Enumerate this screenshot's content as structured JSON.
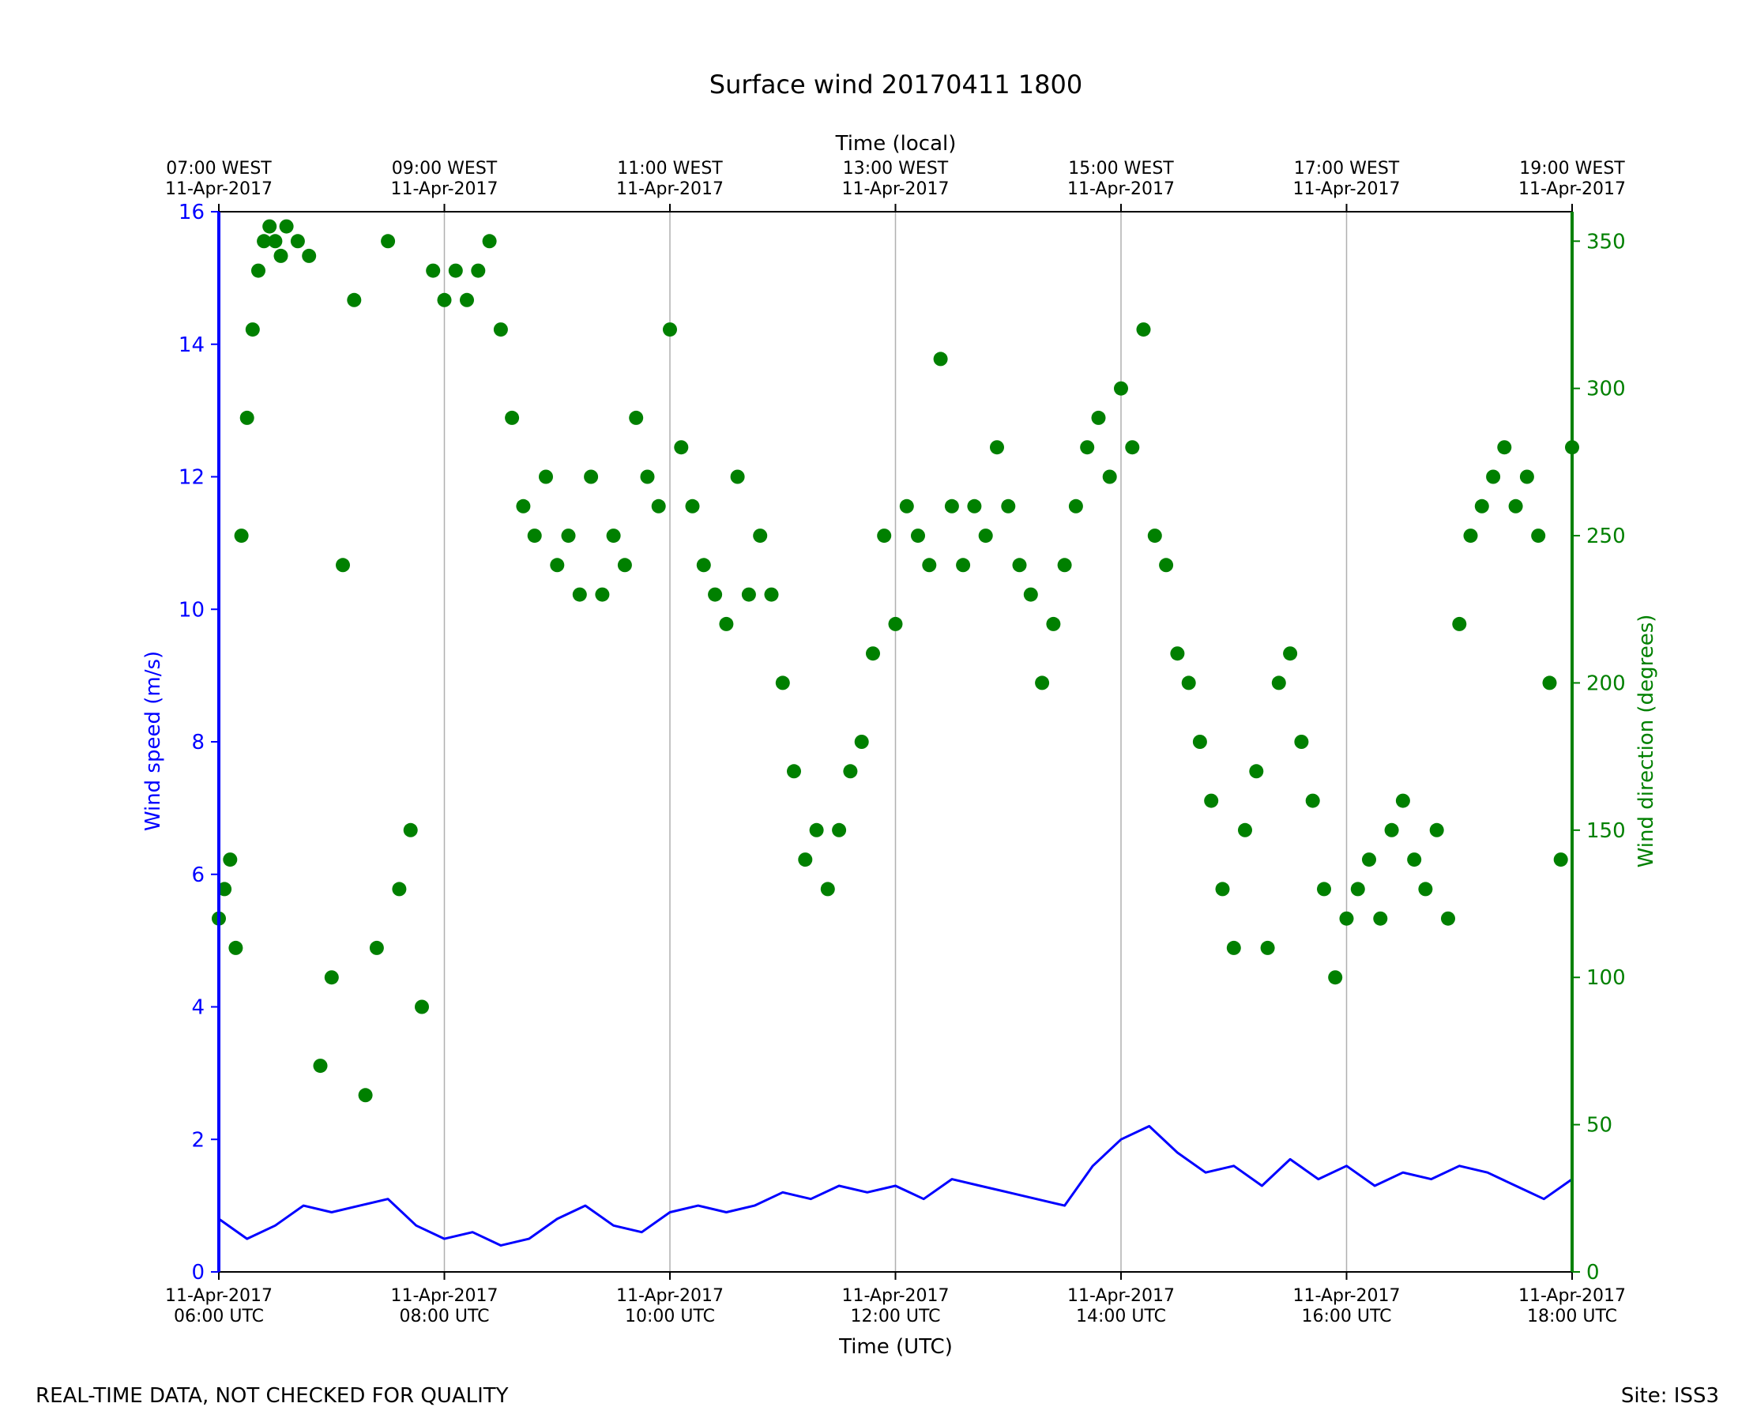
{
  "chart_data": {
    "type": "line+scatter",
    "title": "Surface wind 20170411 1800",
    "xlabel": "Time (UTC)",
    "x2label": "Time (local)",
    "ylabel": "Wind speed (m/s)",
    "y2label": "Wind direction (degrees)",
    "xlim_hours_utc": [
      6,
      18
    ],
    "ylim": [
      0,
      16
    ],
    "y2lim": [
      0,
      360
    ],
    "yticks": [
      0,
      2,
      4,
      6,
      8,
      10,
      12,
      14,
      16
    ],
    "y2ticks": [
      0,
      50,
      100,
      150,
      200,
      250,
      300,
      350
    ],
    "xticks": [
      {
        "hour": 6,
        "date": "11-Apr-2017",
        "time": "06:00 UTC"
      },
      {
        "hour": 8,
        "date": "11-Apr-2017",
        "time": "08:00 UTC"
      },
      {
        "hour": 10,
        "date": "11-Apr-2017",
        "time": "10:00 UTC"
      },
      {
        "hour": 12,
        "date": "11-Apr-2017",
        "time": "12:00 UTC"
      },
      {
        "hour": 14,
        "date": "11-Apr-2017",
        "time": "14:00 UTC"
      },
      {
        "hour": 16,
        "date": "11-Apr-2017",
        "time": "16:00 UTC"
      },
      {
        "hour": 18,
        "date": "11-Apr-2017",
        "time": "18:00 UTC"
      }
    ],
    "x2ticks": [
      {
        "hour": 6,
        "time": "07:00 WEST",
        "date": "11-Apr-2017"
      },
      {
        "hour": 8,
        "time": "09:00 WEST",
        "date": "11-Apr-2017"
      },
      {
        "hour": 10,
        "time": "11:00 WEST",
        "date": "11-Apr-2017"
      },
      {
        "hour": 12,
        "time": "13:00 WEST",
        "date": "11-Apr-2017"
      },
      {
        "hour": 14,
        "time": "15:00 WEST",
        "date": "11-Apr-2017"
      },
      {
        "hour": 16,
        "time": "17:00 WEST",
        "date": "11-Apr-2017"
      },
      {
        "hour": 18,
        "time": "19:00 WEST",
        "date": "11-Apr-2017"
      }
    ],
    "vgrid": true,
    "colors": {
      "speed": "#0000ff",
      "direction": "#008000"
    },
    "series": [
      {
        "axis": "left",
        "style": "line",
        "x_hours_utc": [
          6.0,
          6.25,
          6.5,
          6.75,
          7.0,
          7.25,
          7.5,
          7.75,
          8.0,
          8.25,
          8.5,
          8.75,
          9.0,
          9.25,
          9.5,
          9.75,
          10.0,
          10.25,
          10.5,
          10.75,
          11.0,
          11.25,
          11.5,
          11.75,
          12.0,
          12.25,
          12.5,
          12.75,
          13.0,
          13.25,
          13.5,
          13.75,
          14.0,
          14.25,
          14.5,
          14.75,
          15.0,
          15.25,
          15.5,
          15.75,
          16.0,
          16.25,
          16.5,
          16.75,
          17.0,
          17.25,
          17.5,
          17.75,
          18.0
        ],
        "values": [
          0.8,
          0.5,
          0.7,
          1.0,
          0.9,
          1.0,
          1.1,
          0.7,
          0.5,
          0.6,
          0.4,
          0.5,
          0.8,
          1.0,
          0.7,
          0.6,
          0.9,
          1.0,
          0.9,
          1.0,
          1.2,
          1.1,
          1.3,
          1.2,
          1.3,
          1.1,
          1.4,
          1.3,
          1.2,
          1.1,
          1.0,
          1.6,
          2.0,
          2.2,
          1.8,
          1.5,
          1.6,
          1.3,
          1.7,
          1.4,
          1.6,
          1.3,
          1.5,
          1.4,
          1.6,
          1.5,
          1.3,
          1.1,
          1.4
        ]
      },
      {
        "axis": "right",
        "style": "scatter",
        "x_hours_utc": [
          6.0,
          6.05,
          6.1,
          6.15,
          6.2,
          6.25,
          6.3,
          6.35,
          6.4,
          6.45,
          6.5,
          6.55,
          6.6,
          6.7,
          6.8,
          6.9,
          7.0,
          7.1,
          7.2,
          7.3,
          7.4,
          7.5,
          7.6,
          7.7,
          7.8,
          7.9,
          8.0,
          8.1,
          8.2,
          8.3,
          8.4,
          8.5,
          8.6,
          8.7,
          8.8,
          8.9,
          9.0,
          9.1,
          9.2,
          9.3,
          9.4,
          9.5,
          9.6,
          9.7,
          9.8,
          9.9,
          10.0,
          10.1,
          10.2,
          10.3,
          10.4,
          10.5,
          10.6,
          10.7,
          10.8,
          10.9,
          11.0,
          11.1,
          11.2,
          11.3,
          11.4,
          11.5,
          11.6,
          11.7,
          11.8,
          11.9,
          12.0,
          12.1,
          12.2,
          12.3,
          12.4,
          12.5,
          12.6,
          12.7,
          12.8,
          12.9,
          13.0,
          13.1,
          13.2,
          13.3,
          13.4,
          13.5,
          13.6,
          13.7,
          13.8,
          13.9,
          14.0,
          14.1,
          14.2,
          14.3,
          14.4,
          14.5,
          14.6,
          14.7,
          14.8,
          14.9,
          15.0,
          15.1,
          15.2,
          15.3,
          15.4,
          15.5,
          15.6,
          15.7,
          15.8,
          15.9,
          16.0,
          16.1,
          16.2,
          16.3,
          16.4,
          16.5,
          16.6,
          16.7,
          16.8,
          16.9,
          17.0,
          17.1,
          17.2,
          17.3,
          17.4,
          17.5,
          17.6,
          17.7,
          17.8,
          17.9,
          18.0
        ],
        "values": [
          120,
          130,
          140,
          110,
          250,
          290,
          320,
          340,
          350,
          355,
          350,
          345,
          355,
          350,
          345,
          70,
          100,
          240,
          330,
          60,
          110,
          350,
          130,
          150,
          90,
          340,
          330,
          340,
          330,
          340,
          350,
          320,
          290,
          260,
          250,
          270,
          240,
          250,
          230,
          270,
          230,
          250,
          240,
          290,
          270,
          260,
          320,
          280,
          260,
          240,
          230,
          220,
          270,
          230,
          250,
          230,
          200,
          170,
          140,
          150,
          130,
          150,
          170,
          180,
          210,
          250,
          220,
          260,
          250,
          240,
          310,
          260,
          240,
          260,
          250,
          280,
          260,
          240,
          230,
          200,
          220,
          240,
          260,
          280,
          290,
          270,
          300,
          280,
          320,
          250,
          240,
          210,
          200,
          180,
          160,
          130,
          110,
          150,
          170,
          110,
          200,
          210,
          180,
          160,
          130,
          100,
          120,
          130,
          140,
          120,
          150,
          160,
          140,
          130,
          150,
          120,
          220,
          250,
          260,
          270,
          280,
          260,
          270,
          250,
          200,
          140,
          280
        ]
      }
    ],
    "footer_left": "REAL-TIME DATA, NOT CHECKED FOR QUALITY",
    "footer_right": "Site: ISS3"
  }
}
